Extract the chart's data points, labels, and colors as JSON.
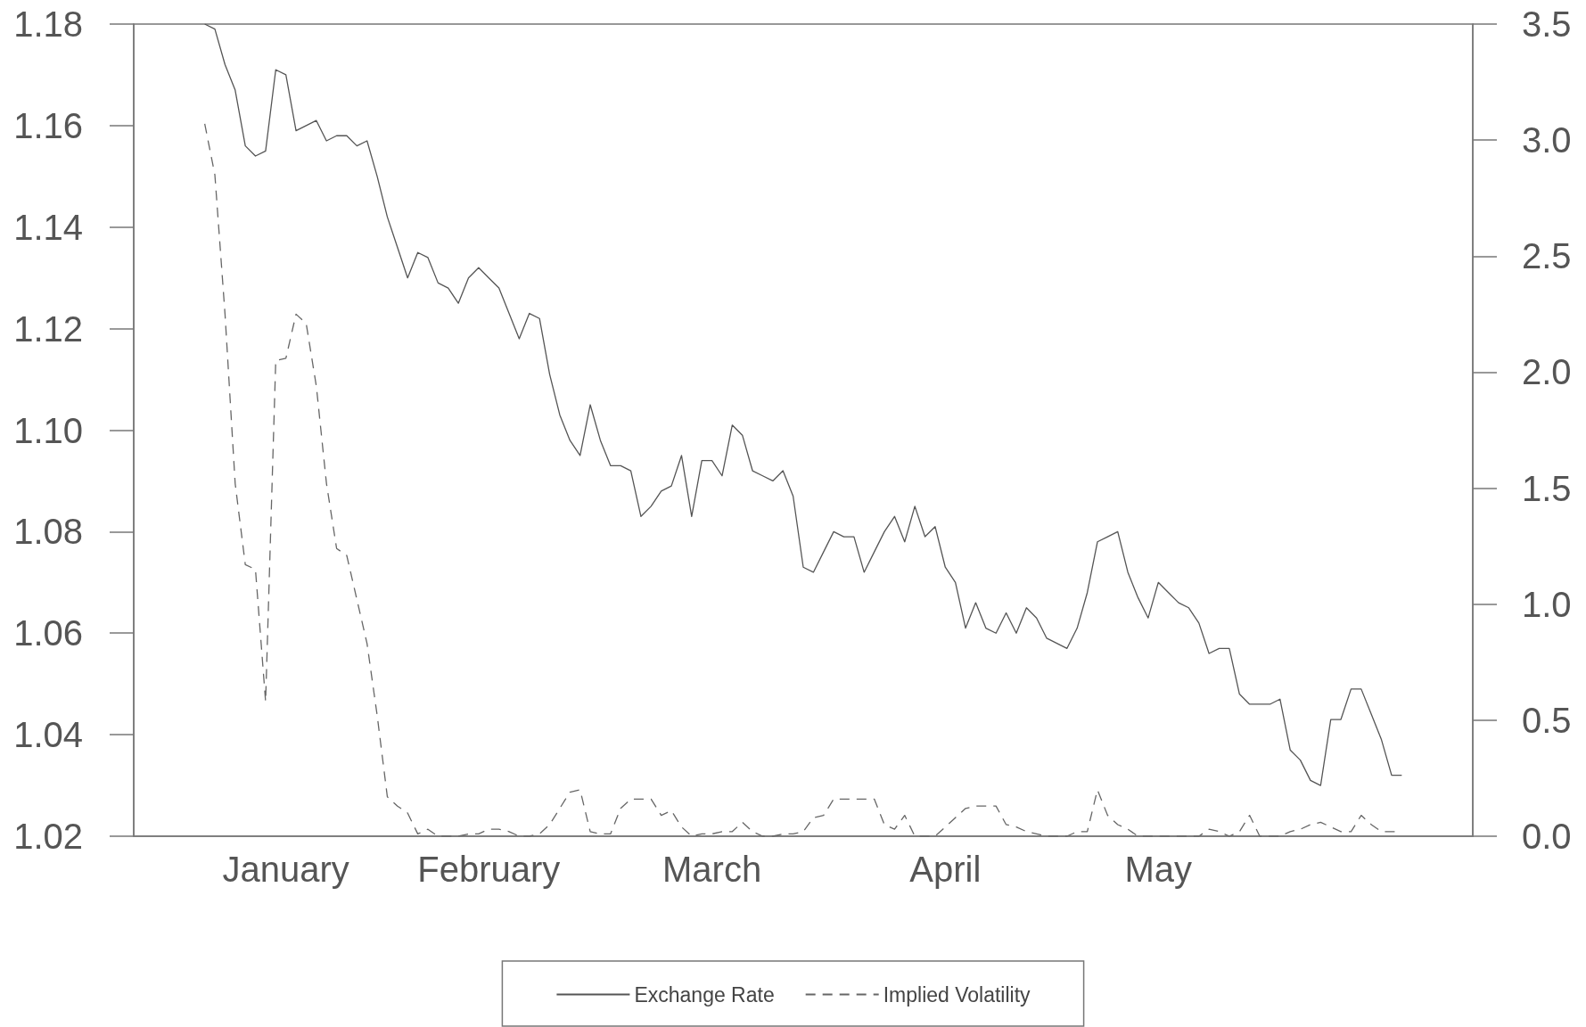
{
  "chart_data": {
    "type": "line",
    "categories": [
      null,
      null,
      null,
      null,
      null,
      null,
      null,
      null,
      null,
      null,
      null,
      null,
      null,
      null,
      null,
      "January",
      null,
      null,
      null,
      null,
      null,
      null,
      null,
      null,
      null,
      null,
      null,
      null,
      null,
      null,
      null,
      null,
      null,
      null,
      null,
      "February",
      null,
      null,
      null,
      null,
      null,
      null,
      null,
      null,
      null,
      null,
      null,
      null,
      null,
      null,
      null,
      null,
      null,
      null,
      null,
      null,
      null,
      "March",
      null,
      null,
      null,
      null,
      null,
      null,
      null,
      null,
      null,
      null,
      null,
      null,
      null,
      null,
      null,
      null,
      null,
      null,
      null,
      null,
      null,
      null,
      "April",
      null,
      null,
      null,
      null,
      null,
      null,
      null,
      null,
      null,
      null,
      null,
      null,
      null,
      null,
      null,
      null,
      null,
      null,
      null,
      null,
      "May",
      null,
      null,
      null,
      null,
      null,
      null,
      null,
      null,
      null,
      null,
      null,
      null,
      null,
      null,
      null,
      null,
      null,
      null,
      null,
      null,
      null,
      null,
      null,
      null,
      null,
      null,
      null,
      null,
      null,
      null,
      null
    ],
    "ylim": [
      1.02,
      1.18
    ],
    "yticks": [
      1.02,
      1.04,
      1.06,
      1.08,
      {
        "value": 1.1,
        "label": "1.10"
      },
      1.12,
      1.14,
      1.16,
      1.18
    ],
    "y2lim": [
      0,
      3.5
    ],
    "y2ticks": [
      {
        "value": 0,
        "label": "0.0"
      },
      0.5,
      {
        "value": 1,
        "label": "1.0"
      },
      1.5,
      {
        "value": 2,
        "label": "2.0"
      },
      2.5,
      {
        "value": 3,
        "label": "3.0"
      },
      3.5
    ],
    "series": [
      {
        "name": "Exchange Rate",
        "color": "#555555",
        "line_style": "solid",
        "values": [
          null,
          null,
          null,
          null,
          null,
          null,
          null,
          1.18,
          1.179,
          1.172,
          1.167,
          1.156,
          1.154,
          1.155,
          1.171,
          1.17,
          1.159,
          1.16,
          1.161,
          1.157,
          1.158,
          1.158,
          1.156,
          1.157,
          1.15,
          1.142,
          1.136,
          1.13,
          1.135,
          1.134,
          1.129,
          1.128,
          1.125,
          1.13,
          1.132,
          1.13,
          1.128,
          1.123,
          1.118,
          1.123,
          1.122,
          1.111,
          1.103,
          1.098,
          1.095,
          1.105,
          1.098,
          1.093,
          1.093,
          1.092,
          1.083,
          1.085,
          1.088,
          1.089,
          1.095,
          1.083,
          1.094,
          1.094,
          1.091,
          1.101,
          1.099,
          1.092,
          1.091,
          1.09,
          1.092,
          1.087,
          1.073,
          1.072,
          1.076,
          1.08,
          1.079,
          1.079,
          1.072,
          1.076,
          1.08,
          1.083,
          1.078,
          1.085,
          1.079,
          1.081,
          1.073,
          1.07,
          1.061,
          1.066,
          1.061,
          1.06,
          1.064,
          1.06,
          1.065,
          1.063,
          1.059,
          1.058,
          1.057,
          1.061,
          1.068,
          1.078,
          1.079,
          1.08,
          1.072,
          1.067,
          1.063,
          1.07,
          1.068,
          1.066,
          1.065,
          1.062,
          1.056,
          1.057,
          1.057,
          1.048,
          1.046,
          1.046,
          1.046,
          1.047,
          1.037,
          1.035,
          1.031,
          1.03,
          1.043,
          1.043,
          1.049,
          1.049,
          1.044,
          1.039,
          1.032,
          1.032,
          null,
          null,
          null,
          null,
          null,
          null,
          null
        ]
      },
      {
        "name": "Implied Volatility",
        "color": "#666666",
        "line_style": "dashed",
        "axis": "y2",
        "values": [
          null,
          null,
          null,
          null,
          null,
          null,
          null,
          3.07,
          2.85,
          2.25,
          1.52,
          1.17,
          1.15,
          0.58,
          2.05,
          2.06,
          2.25,
          2.21,
          1.94,
          1.52,
          1.24,
          1.21,
          1.02,
          0.83,
          0.52,
          0.17,
          0.13,
          0.1,
          0.01,
          0.03,
          0,
          0,
          0,
          0.01,
          0.01,
          0.03,
          0.03,
          0.02,
          0,
          0,
          0.01,
          0.05,
          0.12,
          0.19,
          0.2,
          0.02,
          0.01,
          0.01,
          0.12,
          0.16,
          0.16,
          0.16,
          0.09,
          0.11,
          0.04,
          0,
          0.01,
          0.01,
          0.02,
          0.02,
          0.06,
          0.02,
          0,
          0,
          0.01,
          0.01,
          0.02,
          0.08,
          0.09,
          0.16,
          0.16,
          0.16,
          0.16,
          0.16,
          0.05,
          0.03,
          0.09,
          0,
          0,
          0,
          0.04,
          0.08,
          0.12,
          0.13,
          0.13,
          0.13,
          0.05,
          0.04,
          0.02,
          0.01,
          0,
          0,
          0,
          0.02,
          0.02,
          0.2,
          0.09,
          0.05,
          0.03,
          0,
          0,
          0,
          0,
          0,
          0,
          0,
          0.03,
          0.02,
          0,
          0.02,
          0.09,
          0,
          0,
          0,
          0.02,
          0.03,
          0.05,
          0.06,
          0.04,
          0.02,
          0.02,
          0.09,
          0.05,
          0.02,
          0.02,
          0.02,
          null,
          null,
          null,
          null,
          null,
          null,
          null
        ]
      }
    ],
    "marker": "none",
    "legend": "bottom"
  }
}
